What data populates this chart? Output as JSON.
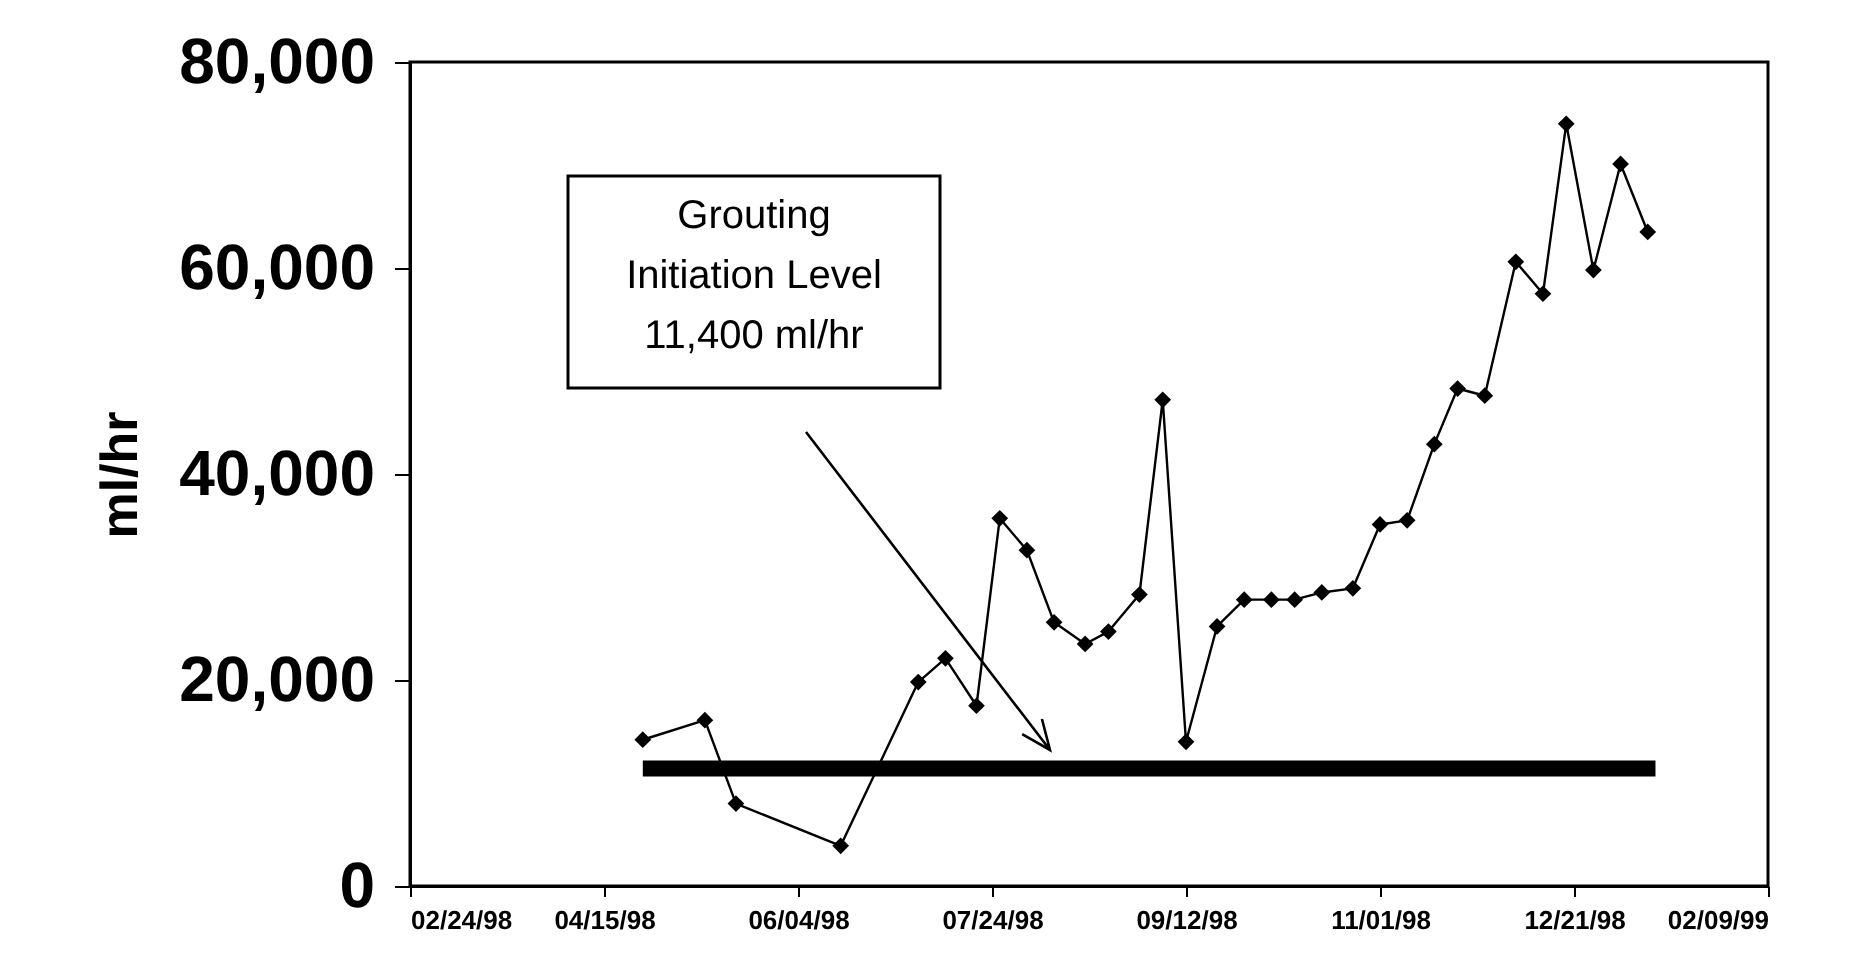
{
  "chart_data": {
    "type": "line",
    "ylabel": "ml/hr",
    "x": [
      "1998-04-25",
      "1998-05-11",
      "1998-05-19",
      "1998-06-15",
      "1998-07-05",
      "1998-07-12",
      "1998-07-20",
      "1998-07-26",
      "1998-08-02",
      "1998-08-09",
      "1998-08-17",
      "1998-08-23",
      "1998-08-31",
      "1998-09-06",
      "1998-09-12",
      "1998-09-20",
      "1998-09-27",
      "1998-10-04",
      "1998-10-10",
      "1998-10-17",
      "1998-10-25",
      "1998-11-01",
      "1998-11-08",
      "1998-11-15",
      "1998-11-21",
      "1998-11-28",
      "1998-12-06",
      "1998-12-13",
      "1998-12-19",
      "1998-12-26",
      "1999-01-02",
      "1999-01-09"
    ],
    "series": [
      {
        "color": "#000000",
        "values": [
          14200,
          16100,
          8000,
          3900,
          19800,
          22100,
          17500,
          35700,
          32600,
          25600,
          23500,
          24700,
          28300,
          47200,
          14000,
          25200,
          27800,
          27800,
          27800,
          28500,
          28900,
          35100,
          35500,
          42900,
          48300,
          47600,
          60600,
          57500,
          74000,
          59800,
          70100,
          63500
        ]
      }
    ],
    "xlim": [
      "1998-02-24",
      "1999-02-09"
    ],
    "xticks": [
      {
        "value": "1998-02-24",
        "label": "02/24/98"
      },
      {
        "value": "1998-04-15",
        "label": "04/15/98"
      },
      {
        "value": "1998-06-04",
        "label": "06/04/98"
      },
      {
        "value": "1998-07-24",
        "label": "07/24/98"
      },
      {
        "value": "1998-09-12",
        "label": "09/12/98"
      },
      {
        "value": "1998-11-01",
        "label": "11/01/98"
      },
      {
        "value": "1998-12-21",
        "label": "12/21/98"
      },
      {
        "value": "1999-02-09",
        "label": "02/09/99"
      }
    ],
    "ylim": [
      0,
      80000
    ],
    "yticks": [
      0,
      {
        "value": 20000,
        "label": "20,000"
      },
      {
        "value": 40000,
        "label": "40,000"
      },
      {
        "value": 60000,
        "label": "60,000"
      },
      {
        "value": 80000,
        "label": "80,000"
      }
    ],
    "ref_lines": [
      {
        "axis": "y",
        "value": 11400,
        "color": "#000000"
      }
    ],
    "annotations": [
      "Grouting\nInitiation Level\n11,400 ml/hr"
    ],
    "grid": false,
    "marker": "diamond",
    "line_style": "solid"
  }
}
